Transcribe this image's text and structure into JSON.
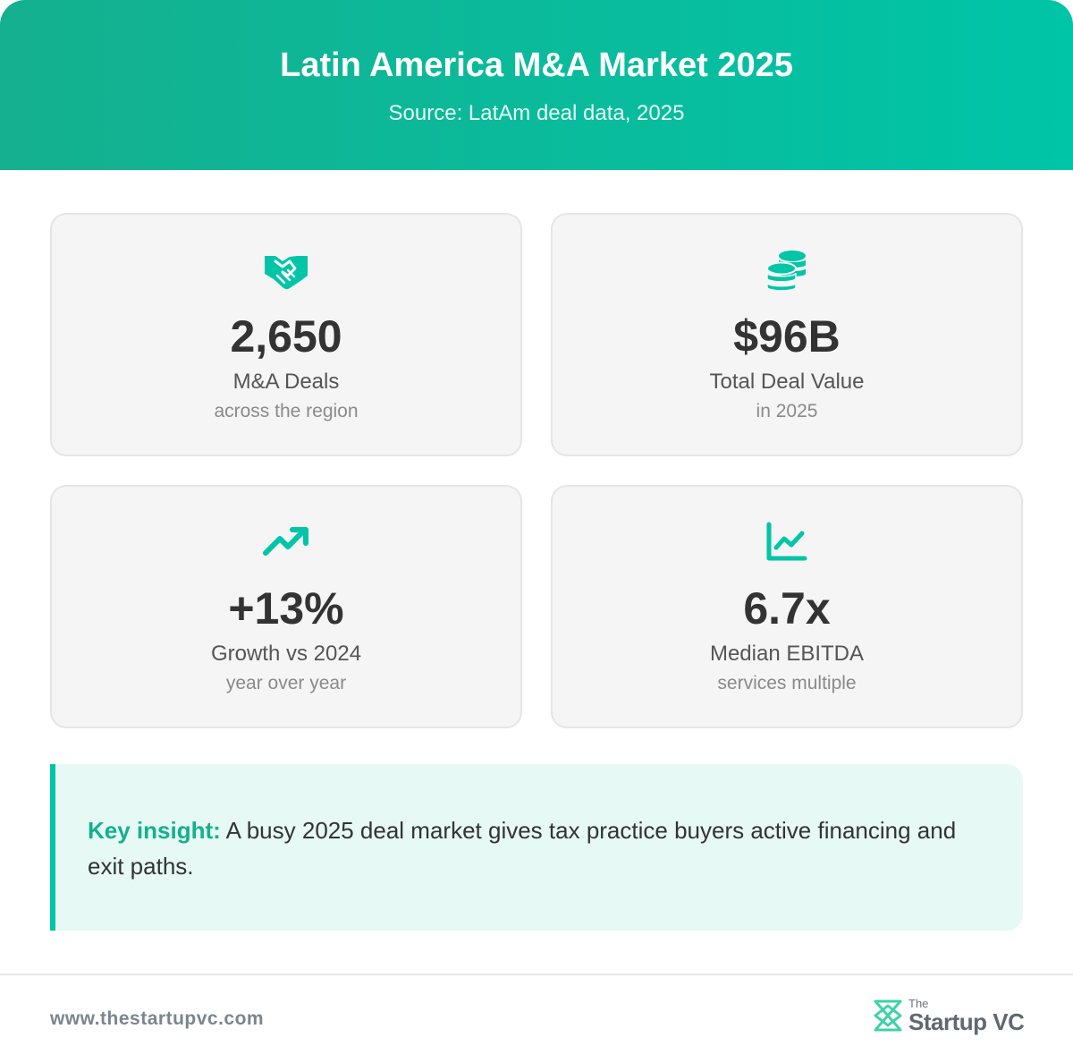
{
  "header": {
    "title": "Latin America M&A Market 2025",
    "subtitle": "Source: LatAm deal data, 2025"
  },
  "colors": {
    "accent": "#00c5a7",
    "accent_dark": "#14b08f",
    "card_bg": "#f5f5f5",
    "insight_bg": "#e6f9f4"
  },
  "cards": [
    {
      "icon": "handshake-icon",
      "value": "2,650",
      "label": "M&A Deals",
      "sublabel": "across the region"
    },
    {
      "icon": "coins-icon",
      "value": "$96B",
      "label": "Total Deal Value",
      "sublabel": "in 2025"
    },
    {
      "icon": "trending-up-icon",
      "value": "+13%",
      "label": "Growth vs 2024",
      "sublabel": "year over year"
    },
    {
      "icon": "line-chart-icon",
      "value": "6.7x",
      "label": "Median EBITDA",
      "sublabel": "services multiple"
    }
  ],
  "insight": {
    "label": "Key insight:",
    "text": " A busy 2025 deal market gives tax practice buyers active financing and exit paths."
  },
  "footer": {
    "url": "www.thestartupvc.com",
    "brand_prefix": "The",
    "brand_name": "Startup VC"
  }
}
